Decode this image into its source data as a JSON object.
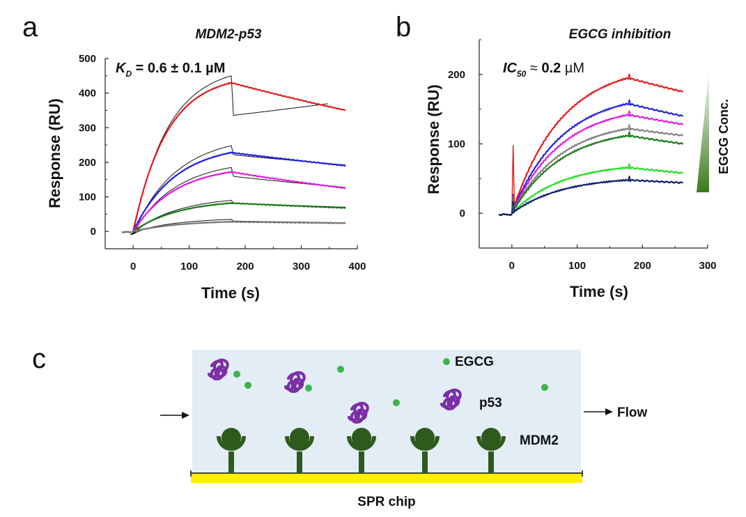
{
  "panels": {
    "a": "a",
    "b": "b",
    "c": "c"
  },
  "chart_data": [
    {
      "type": "line",
      "title": "MDM2-p53",
      "xlabel": "Time (s)",
      "ylabel": "Response (RU)",
      "xlim": [
        -50,
        400
      ],
      "ylim": [
        -50,
        500
      ],
      "xticks": [
        0,
        100,
        200,
        300,
        400
      ],
      "yticks": [
        0,
        100,
        200,
        300,
        400,
        500
      ],
      "annotation": {
        "kd_symbol": "K",
        "kd_subscript": "D",
        "kd_value": " = 0.6 ± 0.1 µM"
      },
      "association_end_s": 175,
      "series": [
        {
          "name": "curve-1",
          "color": "#e31a1c",
          "peak": 430,
          "end": 350,
          "t_end": 380,
          "tau": 60,
          "fit_peak": 450,
          "fit_dip": 335,
          "fit_end": 370,
          "fit_t_end": 350
        },
        {
          "name": "curve-2",
          "color": "#1f1fe0",
          "peak": 228,
          "end": 190,
          "t_end": 380,
          "tau": 75,
          "fit_peak": 248,
          "fit_dip": 222,
          "fit_end": 192,
          "fit_t_end": 380
        },
        {
          "name": "curve-3",
          "color": "#e01ae0",
          "peak": 172,
          "end": 125,
          "t_end": 380,
          "tau": 75,
          "fit_peak": 185,
          "fit_dip": 160,
          "fit_end": 127,
          "fit_t_end": 380
        },
        {
          "name": "curve-4",
          "color": "#1a7a1a",
          "peak": 82,
          "end": 68,
          "t_end": 380,
          "tau": 80,
          "fit_peak": 90,
          "fit_dip": 82,
          "fit_end": 70,
          "fit_t_end": 380
        },
        {
          "name": "curve-5",
          "color": "#777777",
          "peak": 28,
          "end": 24,
          "t_end": 380,
          "tau": 80,
          "fit_peak": 35,
          "fit_dip": 30,
          "fit_end": 25,
          "fit_t_end": 380
        }
      ]
    },
    {
      "type": "line",
      "title": "EGCG inhibition",
      "xlabel": "Time (s)",
      "ylabel": "Response (RU)",
      "xlim": [
        -50,
        300
      ],
      "ylim": [
        -50,
        250
      ],
      "xticks": [
        0,
        100,
        200,
        300
      ],
      "yticks": [
        0,
        100,
        200
      ],
      "annotation": {
        "ic_symbol": "IC",
        "ic_subscript": "50",
        "ic_value_prefix": " ≈ ",
        "ic_value": "0.2",
        "ic_unit": " µM"
      },
      "gradient_label": "EGCG Conc.",
      "association_end_s": 178,
      "series": [
        {
          "name": "curve-1",
          "color": "#e31a1c",
          "peak": 195,
          "end": 175,
          "t_end": 262,
          "tau": 75
        },
        {
          "name": "curve-2",
          "color": "#1f1fe0",
          "peak": 158,
          "end": 140,
          "t_end": 262,
          "tau": 75
        },
        {
          "name": "curve-3",
          "color": "#e01ae0",
          "peak": 142,
          "end": 128,
          "t_end": 262,
          "tau": 75
        },
        {
          "name": "curve-4",
          "color": "#808080",
          "peak": 122,
          "end": 112,
          "t_end": 262,
          "tau": 75
        },
        {
          "name": "curve-5",
          "color": "#1a7a1a",
          "peak": 112,
          "end": 100,
          "t_end": 262,
          "tau": 75
        },
        {
          "name": "curve-6",
          "color": "#22e022",
          "peak": 66,
          "end": 58,
          "t_end": 262,
          "tau": 75
        },
        {
          "name": "curve-7",
          "color": "#0d1a6e",
          "peak": 48,
          "end": 44,
          "t_end": 262,
          "tau": 75
        }
      ]
    }
  ],
  "diagram": {
    "egcg_label": "EGCG",
    "p53_label": "p53",
    "mdm2_label": "MDM2",
    "flow_label": "Flow",
    "chip_label": "SPR chip",
    "colors": {
      "background": "#e3edf6",
      "egcg": "#3cb44b",
      "p53": "#7b2fa6",
      "mdm2": "#2e5a1c",
      "chip": "#ffee00"
    }
  }
}
